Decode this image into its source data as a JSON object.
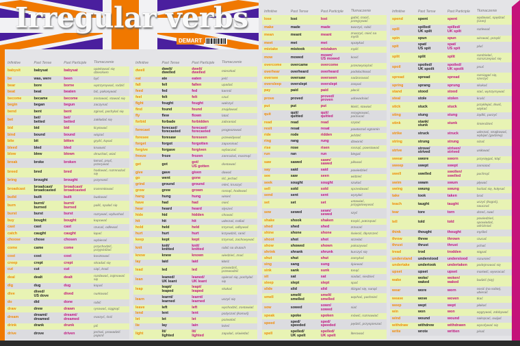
{
  "title": "Irregular verbs",
  "brand": "DEMART",
  "colors": {
    "infinitive": "#f08a00",
    "past": "#222222",
    "participle": "#c0147c",
    "translation": "#6a6a6a",
    "row_green": "#e8f3b4",
    "row_gray": "#dcdce0",
    "purple": "#4a1f9e",
    "orange": "#f07800",
    "magenta": "#c4127a"
  },
  "headers": [
    "Infinitive",
    "Past Tense",
    "Past Participle",
    "Tłumaczenie"
  ],
  "columns": [
    [
      [
        "babysit",
        "babysat",
        "babysat",
        "opiekować się dzieckiem"
      ],
      [
        "be",
        "was, were",
        "been",
        "być"
      ],
      [
        "bear",
        "bore",
        "borne",
        "wytrzymywać, rodzić"
      ],
      [
        "beat",
        "beat",
        "beaten",
        "bić, pokonywać"
      ],
      [
        "become",
        "became",
        "become",
        "zostawać, stawać się"
      ],
      [
        "begin",
        "began",
        "begun",
        "zaczynać"
      ],
      [
        "bend",
        "bent",
        "bent",
        "zginać, pochylać się"
      ],
      [
        "bet",
        "bet/ betted",
        "bet/ betted",
        "zakładać się"
      ],
      [
        "bid",
        "bid",
        "bid",
        "licytować"
      ],
      [
        "bind",
        "bound",
        "bound",
        "wiązać"
      ],
      [
        "bite",
        "bit",
        "bitten",
        "gryźć, kąsać"
      ],
      [
        "bleed",
        "bled",
        "bled",
        "krwawić"
      ],
      [
        "blow",
        "blew",
        "blown",
        "dmuchać, wiać"
      ],
      [
        "break",
        "broke",
        "broken",
        "łamać, psuć, przerywać"
      ],
      [
        "breed",
        "bred",
        "bred",
        "hodować, rozmnażać się"
      ],
      [
        "bring",
        "brought",
        "brought",
        "przynosić"
      ],
      [
        "broadcast",
        "broadcast/ broadcasted",
        "broadcast/ broadcasted",
        "transmitować"
      ],
      [
        "build",
        "built",
        "built",
        "budować"
      ],
      [
        "burn",
        "burnt/ burned",
        "burnt/ burned",
        "palić, spalać się"
      ],
      [
        "burst",
        "burst",
        "burst",
        "rozrywać, wybuchać"
      ],
      [
        "buy",
        "bought",
        "bought",
        "kupować"
      ],
      [
        "cast",
        "cast",
        "cast",
        "rzucać, odlewać"
      ],
      [
        "catch",
        "caught",
        "caught",
        "łapać"
      ],
      [
        "choose",
        "chose",
        "chosen",
        "wybierać"
      ],
      [
        "come",
        "came",
        "come",
        "przychodzić, przyjeżdżać"
      ],
      [
        "cost",
        "cost",
        "cost",
        "kosztować"
      ],
      [
        "creep",
        "crept",
        "crept",
        "skradać się"
      ],
      [
        "cut",
        "cut",
        "cut",
        "ciąć, kroić"
      ],
      [
        "deal",
        "dealt",
        "dealt",
        "rozdawać, zajmować się"
      ],
      [
        "dig",
        "dug",
        "dug",
        "kopać"
      ],
      [
        "dive",
        "dived/ US dove",
        "dived",
        "nurkować"
      ],
      [
        "do",
        "did",
        "done",
        "robić"
      ],
      [
        "draw",
        "drew",
        "drawn",
        "rysować, ciągnąć"
      ],
      [
        "dream",
        "dreamt/ dreamed",
        "dreamt/ dreamed",
        "marzyć, śnić"
      ],
      [
        "drink",
        "drank",
        "drunk",
        "pić"
      ],
      [
        "drive",
        "drove",
        "driven",
        "jechać, prowadzić pojazd"
      ]
    ],
    [
      [
        "dwell",
        "dwelt/ dwelled",
        "dwelt/ dwelled",
        "mieszkać"
      ],
      [
        "eat",
        "ate",
        "eaten",
        "jeść"
      ],
      [
        "fall",
        "fell",
        "fallen",
        "upadać"
      ],
      [
        "feed",
        "fed",
        "fed",
        "karmić"
      ],
      [
        "feel",
        "felt",
        "felt",
        "czuć"
      ],
      [
        "fight",
        "fought",
        "fought",
        "walczyć"
      ],
      [
        "find",
        "found",
        "found",
        "znajdować"
      ],
      [
        "fly",
        "flew",
        "flown",
        "latać"
      ],
      [
        "forbid",
        "forbade",
        "forbidden",
        "zabraniać"
      ],
      [
        "forecast",
        "forecast/ forecasted",
        "forecast/ forecasted",
        "prognozować"
      ],
      [
        "foresee",
        "foresaw",
        "foreseen",
        "przewidywać"
      ],
      [
        "forget",
        "forgot",
        "forgotten",
        "zapominać"
      ],
      [
        "forgive",
        "forgave",
        "forgiven",
        "wybaczać"
      ],
      [
        "freeze",
        "froze",
        "frozen",
        "zamrażać, marznąć"
      ],
      [
        "get",
        "got",
        "got/ US gotten",
        "dostawać"
      ],
      [
        "give",
        "gave",
        "given",
        "dawać"
      ],
      [
        "go",
        "went",
        "gone",
        "iść, jechać"
      ],
      [
        "grind",
        "ground",
        "ground",
        "mleć, kruszyć"
      ],
      [
        "grow",
        "grew",
        "grown",
        "rosnąć, hodować"
      ],
      [
        "hang",
        "hung",
        "hung",
        "wisieć"
      ],
      [
        "have",
        "had",
        "had",
        "mieć"
      ],
      [
        "hear",
        "heard",
        "heard",
        "słyszeć"
      ],
      [
        "hide",
        "hid",
        "hidden",
        "chować"
      ],
      [
        "hit",
        "hit",
        "hit",
        "uderzać, trafiać"
      ],
      [
        "hold",
        "held",
        "held",
        "trzymać, odbywać"
      ],
      [
        "hurt",
        "hurt",
        "hurt",
        "krzywdzić, ranić"
      ],
      [
        "keep",
        "kept",
        "kept",
        "trzymać, zachowywać"
      ],
      [
        "knit",
        "knit/ knitted",
        "knit/ knitted",
        "robić na drutach"
      ],
      [
        "know",
        "knew",
        "known",
        "wiedzieć, znać"
      ],
      [
        "lay",
        "laid",
        "laid",
        "kłaść"
      ],
      [
        "lead",
        "led",
        "led",
        "prowadzić, przewodzić"
      ],
      [
        "lean",
        "leaned/ UK leant",
        "leaned/ UK leant",
        "opierać się, pochylać się"
      ],
      [
        "leap",
        "leapt/ leaped",
        "leapt/ leaped",
        "skakać"
      ],
      [
        "learn",
        "learnt/ learned",
        "learnt/ learned",
        "uczyć się"
      ],
      [
        "leave",
        "left",
        "left",
        "wychodzić, zostawiać"
      ],
      [
        "lend",
        "lent",
        "lent",
        "pożyczać (komuś)"
      ],
      [
        "let",
        "let",
        "let",
        "pozwalać"
      ],
      [
        "lie",
        "lay",
        "lain",
        "leżeć"
      ],
      [
        "light",
        "lit/ lighted",
        "lit/ lighted",
        "zapalać, oświetlać"
      ]
    ],
    [
      [
        "lose",
        "lost",
        "lost",
        "gubić, tracić, przegrywać"
      ],
      [
        "make",
        "made",
        "made",
        "tworzyć, robić"
      ],
      [
        "mean",
        "meant",
        "meant",
        "znaczyć, mieć na myśli"
      ],
      [
        "meet",
        "met",
        "met",
        "spotykać"
      ],
      [
        "mistake",
        "mistook",
        "mistaken",
        "mylić"
      ],
      [
        "mow",
        "mowed",
        "mown/ US mowed",
        "kosić"
      ],
      [
        "overcome",
        "overcame",
        "overcome",
        "przezwyciężać"
      ],
      [
        "overhear",
        "overheard",
        "overheard",
        "podsłuchiwać"
      ],
      [
        "oversee",
        "oversaw",
        "overseen",
        "nadzorować"
      ],
      [
        "oversleep",
        "overslept",
        "overslept",
        "zaspać"
      ],
      [
        "pay",
        "paid",
        "paid",
        "płacić"
      ],
      [
        "prove",
        "proved",
        "proved/ proven",
        "udowadniać"
      ],
      [
        "put",
        "put",
        "put",
        "kłaść, stawiać"
      ],
      [
        "quit",
        "quit/ quitted",
        "quit/ quitted",
        "rezygnować, porzucać"
      ],
      [
        "read",
        "read",
        "read",
        "czytać"
      ],
      [
        "resit",
        "resat",
        "resat",
        "powtarzać egzamin"
      ],
      [
        "ride",
        "rode",
        "ridden",
        "jeździć"
      ],
      [
        "ring",
        "rang",
        "rung",
        "dzwonić"
      ],
      [
        "rise",
        "rose",
        "risen",
        "rosnąć, powstawać"
      ],
      [
        "run",
        "ran",
        "run",
        "biegać"
      ],
      [
        "saw",
        "sawed",
        "sawn/ sawed",
        "piłować"
      ],
      [
        "say",
        "said",
        "said",
        "powiedzieć"
      ],
      [
        "see",
        "saw",
        "seen",
        "widzieć"
      ],
      [
        "seek",
        "sought",
        "sought",
        "szukać"
      ],
      [
        "sell",
        "sold",
        "sold",
        "sprzedawać"
      ],
      [
        "send",
        "sent",
        "sent",
        "wysyłać"
      ],
      [
        "set",
        "set",
        "set",
        "ustawiać, przygotowywać"
      ],
      [
        "sew",
        "sewed",
        "sewn/ sewed",
        "szyć"
      ],
      [
        "shake",
        "shook",
        "shaken",
        "trząść, potrząsać"
      ],
      [
        "shed",
        "shed",
        "shed",
        "zrzucać"
      ],
      [
        "shine",
        "shone",
        "shone",
        "świecić, błyszczeć"
      ],
      [
        "shoot",
        "shot",
        "shot",
        "strzelać"
      ],
      [
        "show",
        "showed",
        "shown",
        "pokazywać"
      ],
      [
        "shrink",
        "shrank",
        "shrunk",
        "kurczyć się"
      ],
      [
        "shut",
        "shut",
        "shut",
        "zamykać"
      ],
      [
        "sing",
        "sang",
        "sung",
        "śpiewać"
      ],
      [
        "sink",
        "sank",
        "sunk",
        "tonąć"
      ],
      [
        "sit",
        "sat",
        "sat",
        "siadać, siedzieć"
      ],
      [
        "sleep",
        "slept",
        "slept",
        "spać"
      ],
      [
        "slide",
        "slid",
        "slid",
        "ślizgać się, sunąć"
      ],
      [
        "smell",
        "smelt/ smelled",
        "smelt/ smelled",
        "wąchać, pachnieć"
      ],
      [
        "sow",
        "sowed",
        "sown/ sowed",
        "siać"
      ],
      [
        "speak",
        "spoke",
        "spoken",
        "mówić, rozmawiać"
      ],
      [
        "speed",
        "sped/ speeded",
        "sped/ speeded",
        "pędzić, przyspieszać"
      ],
      [
        "spell",
        "spelled/ UK spelt",
        "spelled/ UK spelt",
        "literować"
      ]
    ],
    [
      [
        "spend",
        "spent",
        "spent",
        "wydawać, spędzać (czas)"
      ],
      [
        "spill",
        "spilled/ UK spilt",
        "spilled/ UK spilt",
        "rozlewać"
      ],
      [
        "spin",
        "spun",
        "spun",
        "wirować, prząść"
      ],
      [
        "spit",
        "spat/ US spit",
        "spat/ US spit",
        "pluć"
      ],
      [
        "split",
        "split",
        "split",
        "rozdzielać, rozszczepiać się"
      ],
      [
        "spoil",
        "spoiled/ UK spoilt",
        "spoiled/ UK spoilt",
        "psuć"
      ],
      [
        "spread",
        "spread",
        "spread",
        "rozciągać się, szerzyć"
      ],
      [
        "spring",
        "sprang",
        "sprung",
        "skakać"
      ],
      [
        "stand",
        "stood",
        "stood",
        "stać, wytrzymywać"
      ],
      [
        "steal",
        "stole",
        "stolen",
        "kraść"
      ],
      [
        "stick",
        "stuck",
        "stuck",
        "przyklejać, tkwić, wtykać"
      ],
      [
        "sting",
        "stung",
        "stung",
        "żądlić, parzyć"
      ],
      [
        "stink",
        "stank/ stunk",
        "stunk",
        "śmierdzieć"
      ],
      [
        "strike",
        "struck",
        "struck",
        "uderzać, strajkować, wybijać (godzinę)"
      ],
      [
        "string",
        "strung",
        "strung",
        "nizać"
      ],
      [
        "strive",
        "strove/ strived",
        "striven/ strived",
        "usiłować"
      ],
      [
        "swear",
        "swore",
        "sworn",
        "przysięgać, kląć"
      ],
      [
        "sweep",
        "swept",
        "swept",
        "zamiatać"
      ],
      [
        "swell",
        "swelled",
        "swollen/ swelled",
        "puchnąć"
      ],
      [
        "swim",
        "swam",
        "swum",
        "pływać"
      ],
      [
        "swing",
        "swung",
        "swung",
        "huśtać się, kołysać"
      ],
      [
        "take",
        "took",
        "taken",
        "brać"
      ],
      [
        "teach",
        "taught",
        "taught",
        "uczyć (kogoś), nauczać"
      ],
      [
        "tear",
        "tore",
        "torn",
        "drzeć, rwać"
      ],
      [
        "tell",
        "told",
        "told",
        "powiedzieć, opowiadać, odróżniać"
      ],
      [
        "think",
        "thought",
        "thought",
        "myśleć"
      ],
      [
        "throw",
        "threw",
        "thrown",
        "rzucać"
      ],
      [
        "thrust",
        "thrust",
        "thrust",
        "pchać"
      ],
      [
        "tread",
        "trod",
        "trodden",
        "stąpać"
      ],
      [
        "understand",
        "understood",
        "understood",
        "rozumieć"
      ],
      [
        "undertake",
        "undertook",
        "undertaken",
        "podejmować się"
      ],
      [
        "upset",
        "upset",
        "upset",
        "martwić, wywracać"
      ],
      [
        "wake",
        "woke/ waked",
        "woken/ waked",
        "budzić (się)"
      ],
      [
        "wear",
        "wore",
        "worn",
        "nosić (na sobie), ubierać"
      ],
      [
        "weave",
        "wove",
        "woven",
        "tkać"
      ],
      [
        "weep",
        "wept",
        "wept",
        "płakać"
      ],
      [
        "win",
        "won",
        "won",
        "wygrywać, zdobywać"
      ],
      [
        "wind",
        "wound",
        "wound",
        "nakręcać, owijać"
      ],
      [
        "withdraw",
        "withdrew",
        "withdrawn",
        "wycofywać się"
      ],
      [
        "write",
        "wrote",
        "written",
        "pisać"
      ]
    ]
  ]
}
